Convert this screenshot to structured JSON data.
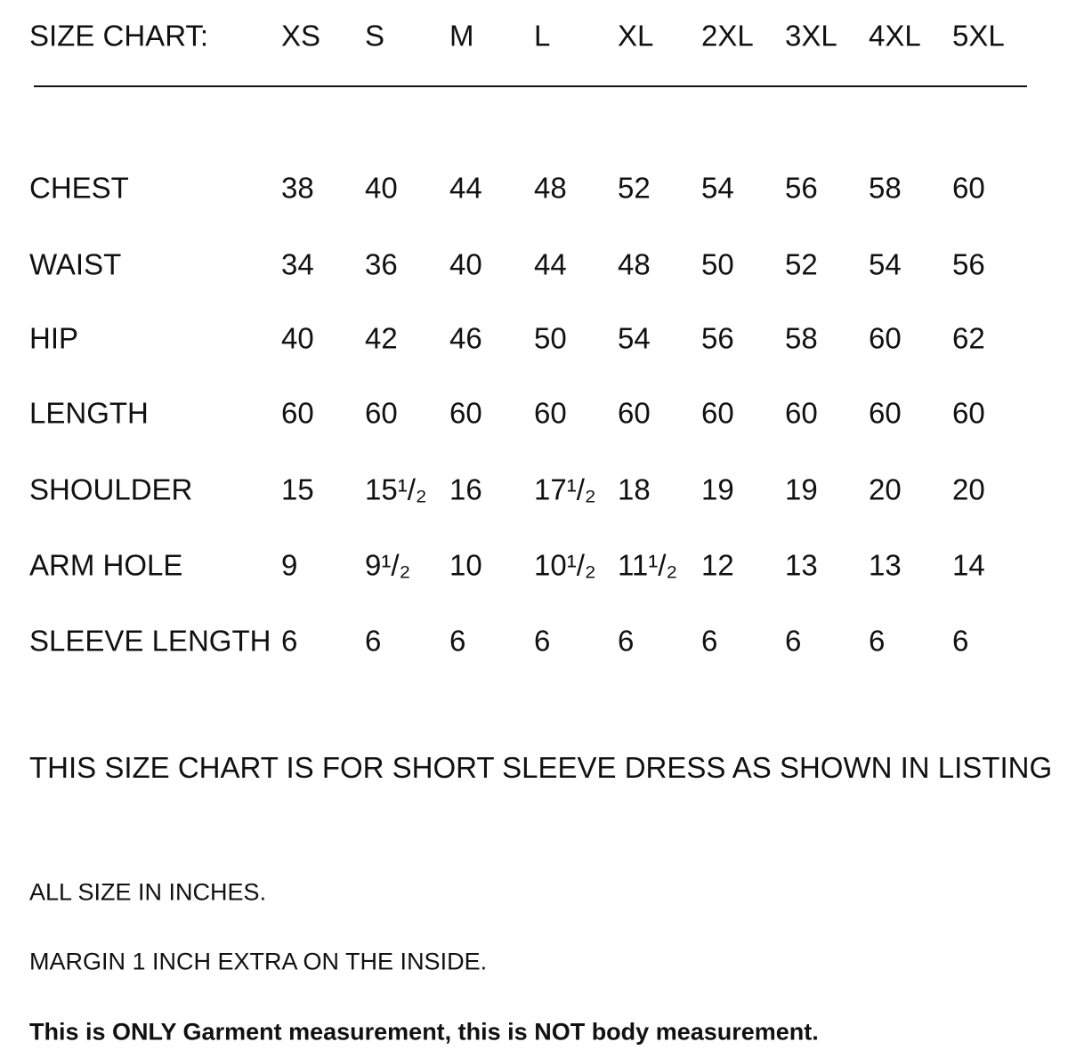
{
  "header": {
    "title": "SIZE CHART:",
    "sizes": [
      "XS",
      "S",
      "M",
      "L",
      "XL",
      "2XL",
      "3XL",
      "4XL",
      "5XL"
    ]
  },
  "rows": [
    {
      "label": "CHEST",
      "values": [
        "38",
        "40",
        "44",
        "48",
        "52",
        "54",
        "56",
        "58",
        "60"
      ]
    },
    {
      "label": "WAIST",
      "values": [
        "34",
        "36",
        "40",
        "44",
        "48",
        "50",
        "52",
        "54",
        "56"
      ]
    },
    {
      "label": "HIP",
      "values": [
        "40",
        "42",
        "46",
        "50",
        "54",
        "56",
        "58",
        "60",
        "62"
      ]
    },
    {
      "label": "LENGTH",
      "values": [
        "60",
        "60",
        "60",
        "60",
        "60",
        "60",
        "60",
        "60",
        "60"
      ]
    },
    {
      "label": "SHOULDER",
      "values": [
        "15",
        "15¹/₂",
        "16",
        "17¹/₂",
        "18",
        "19",
        "19",
        "20",
        "20"
      ]
    },
    {
      "label": "ARM HOLE",
      "values": [
        "9",
        "9¹/₂",
        "10",
        "10¹/₂",
        "11¹/₂",
        "12",
        "13",
        "13",
        "14"
      ]
    },
    {
      "label": "SLEEVE LENGTH",
      "values": [
        "6",
        "6",
        "6",
        "6",
        "6",
        "6",
        "6",
        "6",
        "6"
      ]
    }
  ],
  "notes": {
    "listing": "THIS SIZE CHART IS FOR SHORT SLEEVE DRESS AS SHOWN IN LISTING",
    "units": "ALL SIZE IN INCHES.",
    "margin": "MARGIN 1 INCH EXTRA ON THE INSIDE.",
    "disclaimer": "This is ONLY Garment measurement, this is NOT body measurement."
  }
}
